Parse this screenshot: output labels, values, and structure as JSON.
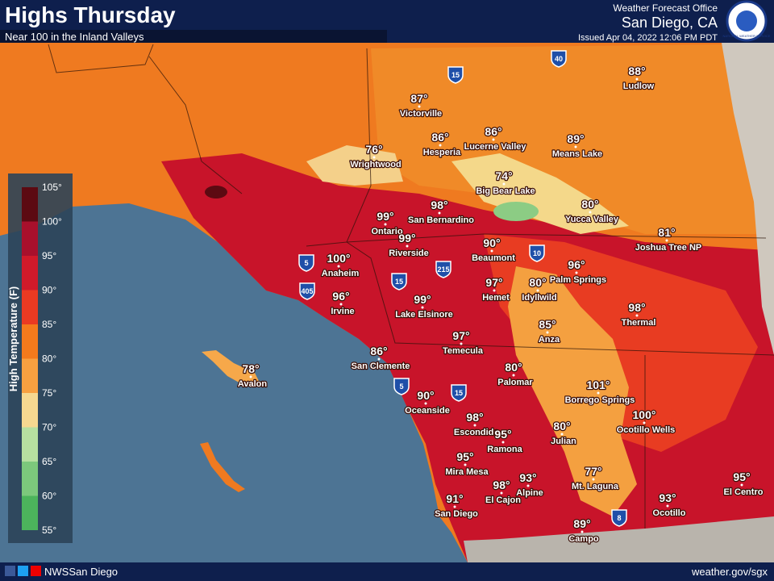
{
  "header": {
    "title": "Highs Thursday",
    "subtitle": "Near 100 in the Inland Valleys",
    "office": "Weather Forecast Office",
    "location": "San Diego, CA",
    "issued": "Issued Apr 04, 2022 12:06 PM PDT",
    "logo_text": "NATIONAL WEATHER SERVICE"
  },
  "legend": {
    "title": "High Temperature (F)",
    "ticks": [
      "105°",
      "100°",
      "95°",
      "90°",
      "85°",
      "80°",
      "75°",
      "70°",
      "65°",
      "60°",
      "55°"
    ],
    "colors": [
      "#5c0a12",
      "#a8102c",
      "#d01a2a",
      "#ea3a22",
      "#f47a1c",
      "#f8a040",
      "#f6d890",
      "#b6e0a0",
      "#7cc87c",
      "#4cb45c"
    ]
  },
  "cities": [
    {
      "name": "Ludlow",
      "temp": "88°"
    },
    {
      "name": "Victorville",
      "temp": "87°"
    },
    {
      "name": "Hesperia",
      "temp": "86°"
    },
    {
      "name": "Lucerne Valley",
      "temp": "86°"
    },
    {
      "name": "Means Lake",
      "temp": "89°"
    },
    {
      "name": "Wrightwood",
      "temp": "76°"
    },
    {
      "name": "Big Bear Lake",
      "temp": "74°"
    },
    {
      "name": "Yucca Valley",
      "temp": "80°"
    },
    {
      "name": "San Bernardino",
      "temp": "98°"
    },
    {
      "name": "Ontario",
      "temp": "99°"
    },
    {
      "name": "Riverside",
      "temp": "99°"
    },
    {
      "name": "Beaumont",
      "temp": "90°"
    },
    {
      "name": "Joshua Tree NP",
      "temp": "81°"
    },
    {
      "name": "Anaheim",
      "temp": "100°"
    },
    {
      "name": "Hemet",
      "temp": "97°"
    },
    {
      "name": "Idyllwild",
      "temp": "80°"
    },
    {
      "name": "Palm Springs",
      "temp": "96°"
    },
    {
      "name": "Irvine",
      "temp": "96°"
    },
    {
      "name": "Lake Elsinore",
      "temp": "99°"
    },
    {
      "name": "Thermal",
      "temp": "98°"
    },
    {
      "name": "Anza",
      "temp": "85°"
    },
    {
      "name": "Temecula",
      "temp": "97°"
    },
    {
      "name": "San Clemente",
      "temp": "86°"
    },
    {
      "name": "Avalon",
      "temp": "78°"
    },
    {
      "name": "Palomar",
      "temp": "80°"
    },
    {
      "name": "Borrego Springs",
      "temp": "101°"
    },
    {
      "name": "Oceanside",
      "temp": "90°"
    },
    {
      "name": "Escondido",
      "temp": "98°"
    },
    {
      "name": "Ocotillo Wells",
      "temp": "100°"
    },
    {
      "name": "Julian",
      "temp": "80°"
    },
    {
      "name": "Ramona",
      "temp": "95°"
    },
    {
      "name": "Mira Mesa",
      "temp": "95°"
    },
    {
      "name": "Mt. Laguna",
      "temp": "77°"
    },
    {
      "name": "Alpine",
      "temp": "93°"
    },
    {
      "name": "El Cajon",
      "temp": "98°"
    },
    {
      "name": "San Diego",
      "temp": "91°"
    },
    {
      "name": "Ocotillo",
      "temp": "93°"
    },
    {
      "name": "El Centro",
      "temp": "95°"
    },
    {
      "name": "Campo",
      "temp": "89°"
    }
  ],
  "highways": [
    "15",
    "40",
    "10",
    "5",
    "405",
    "15",
    "215",
    "5",
    "15",
    "8"
  ],
  "footer": {
    "social": "NWSSan Diego",
    "url": "weather.gov/sgx"
  }
}
